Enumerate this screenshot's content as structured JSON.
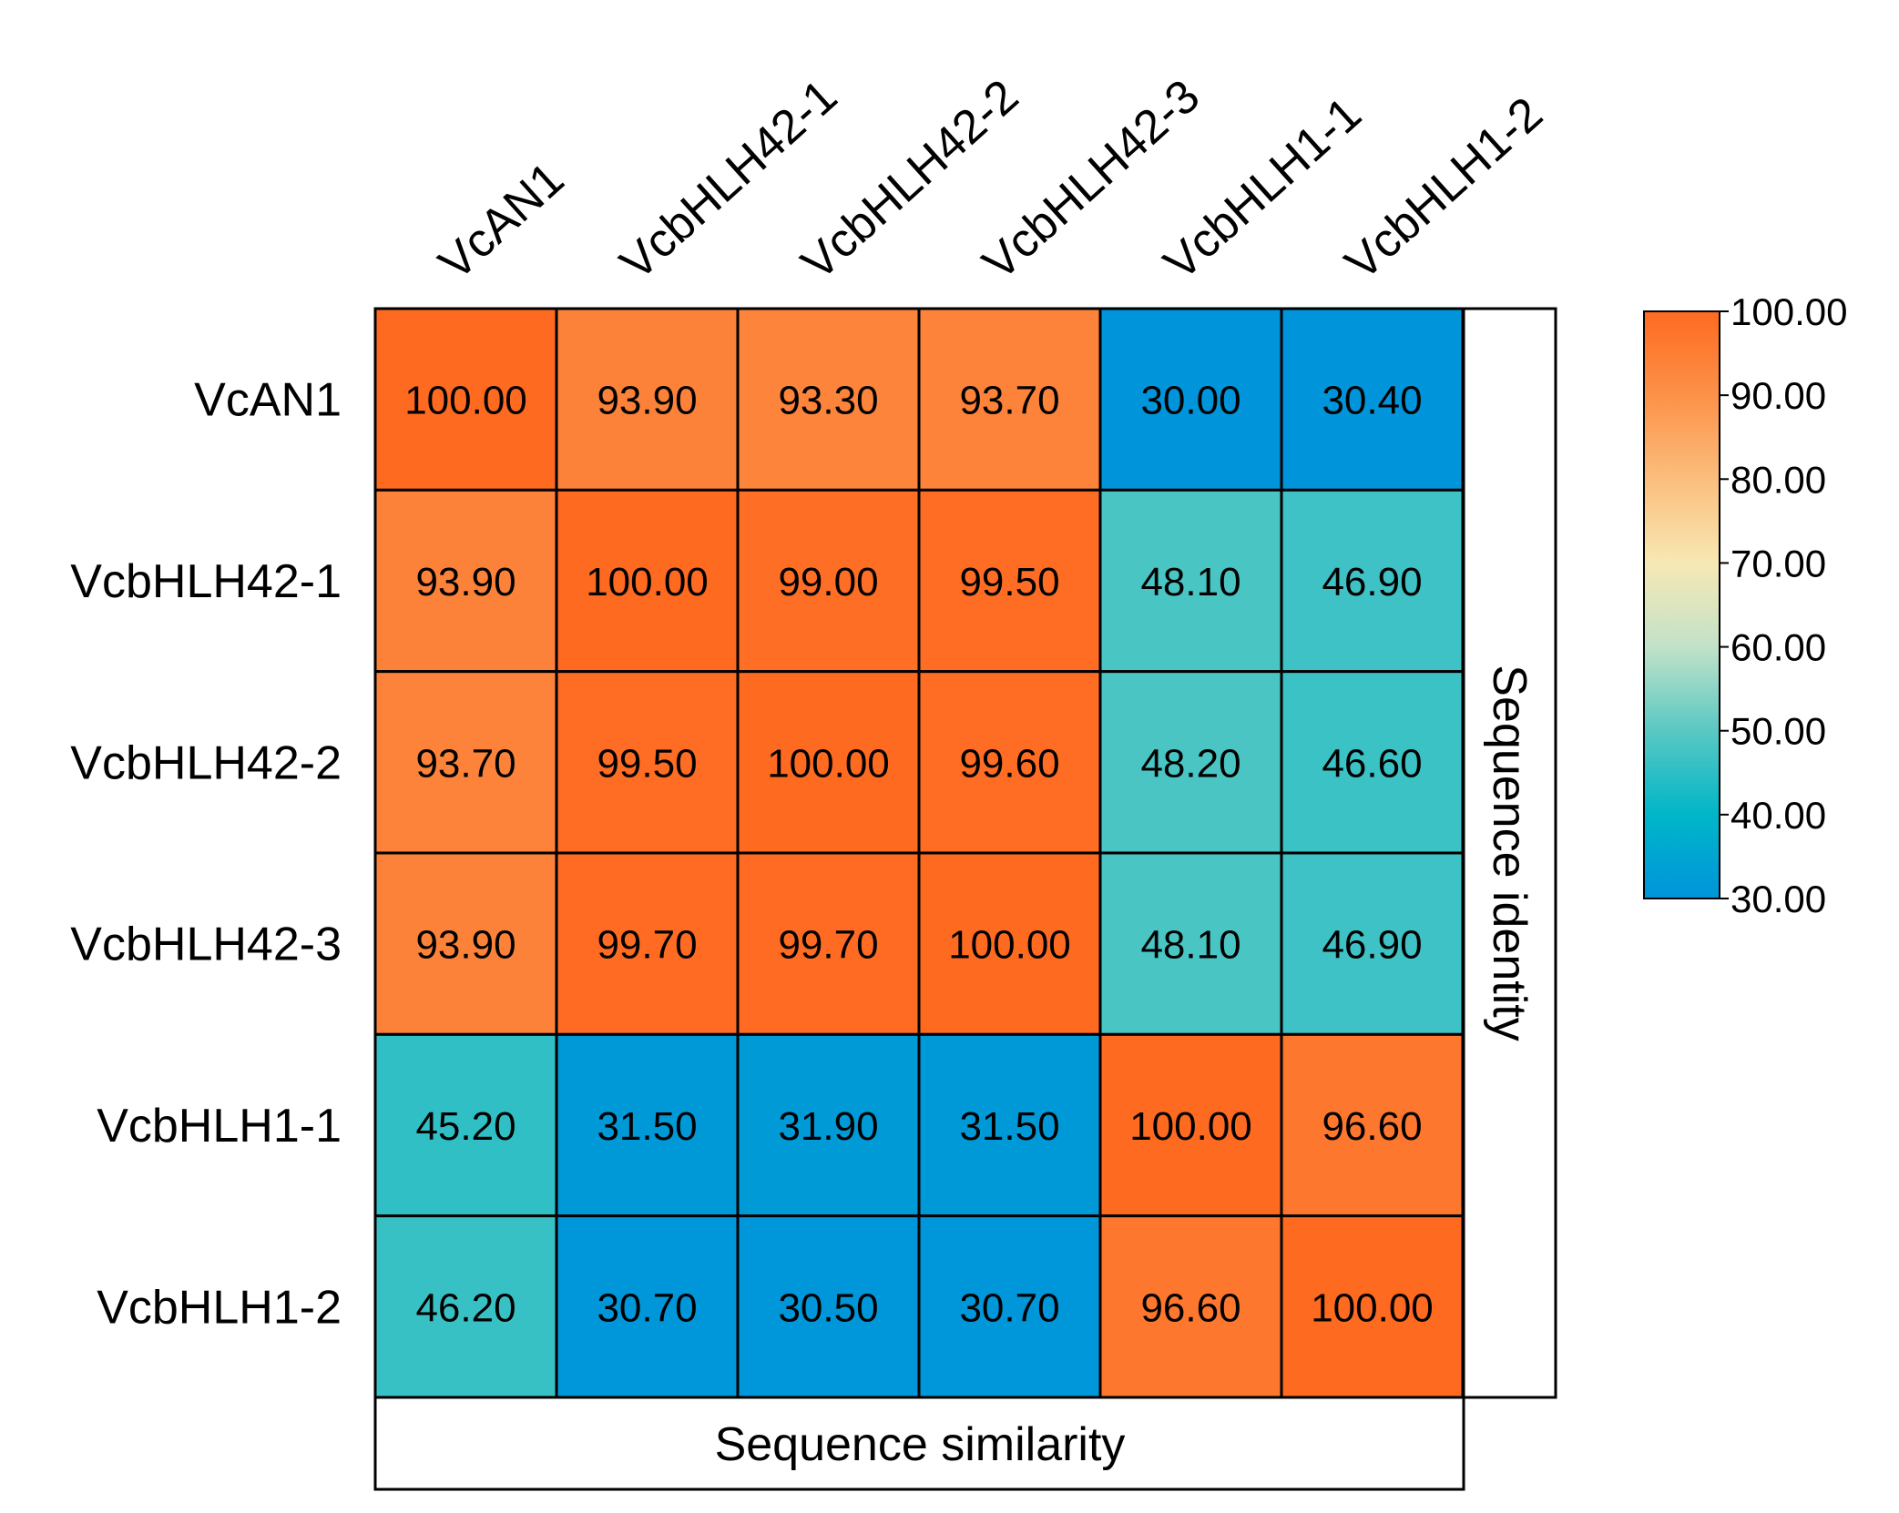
{
  "chart_data": {
    "type": "heatmap",
    "rows": [
      "VcAN1",
      "VcbHLH42-1",
      "VcbHLH42-2",
      "VcbHLH42-3",
      "VcbHLH1-1",
      "VcbHLH1-2"
    ],
    "columns": [
      "VcAN1",
      "VcbHLH42-1",
      "VcbHLH42-2",
      "VcbHLH42-3",
      "VcbHLH1-1",
      "VcbHLH1-2"
    ],
    "values": [
      [
        "100.00",
        "93.90",
        "93.30",
        "93.70",
        "30.00",
        "30.40"
      ],
      [
        "93.90",
        "100.00",
        "99.00",
        "99.50",
        "48.10",
        "46.90"
      ],
      [
        "93.70",
        "99.50",
        "100.00",
        "99.60",
        "48.20",
        "46.60"
      ],
      [
        "93.90",
        "99.70",
        "99.70",
        "100.00",
        "48.10",
        "46.90"
      ],
      [
        "45.20",
        "31.50",
        "31.90",
        "31.50",
        "100.00",
        "96.60"
      ],
      [
        "46.20",
        "30.70",
        "30.50",
        "30.70",
        "96.60",
        "100.00"
      ]
    ],
    "right_label": "Sequence identity",
    "bottom_label": "Sequence similarity",
    "colorbar": {
      "range": [
        30,
        100
      ],
      "ticks": [
        "100.00",
        "90.00",
        "80.00",
        "70.00",
        "60.00",
        "50.00",
        "40.00",
        "30.00"
      ],
      "stops": [
        {
          "value": 30,
          "color": "#0094DB"
        },
        {
          "value": 40,
          "color": "#00B6C8"
        },
        {
          "value": 50,
          "color": "#5AC8C3"
        },
        {
          "value": 60,
          "color": "#C2E2C8"
        },
        {
          "value": 70,
          "color": "#F7E8B4"
        },
        {
          "value": 80,
          "color": "#FBBE7D"
        },
        {
          "value": 90,
          "color": "#FC9148"
        },
        {
          "value": 100,
          "color": "#FF6A21"
        }
      ]
    }
  }
}
